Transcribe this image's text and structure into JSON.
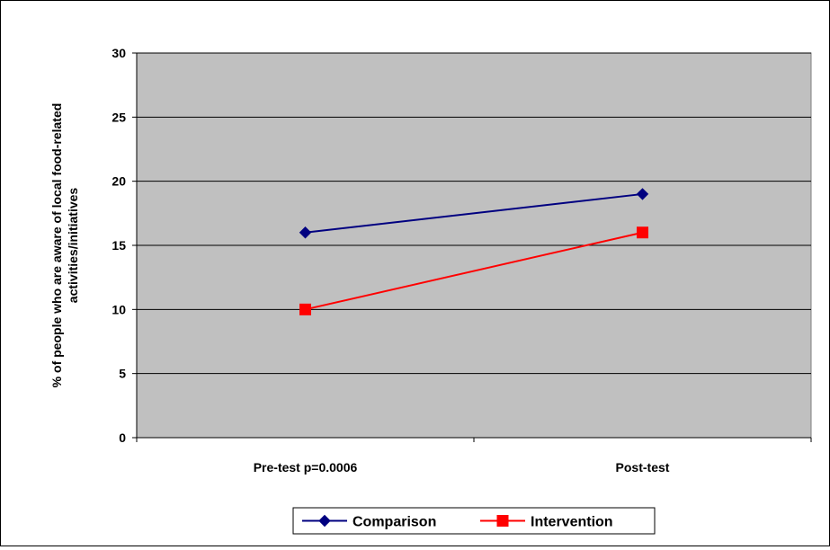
{
  "chart_data": {
    "type": "line",
    "categories": [
      "Pre-test p=0.0006",
      "Post-test"
    ],
    "series": [
      {
        "name": "Comparison",
        "values": [
          16,
          19
        ],
        "color": "#000080",
        "marker": "diamond"
      },
      {
        "name": "Intervention",
        "values": [
          10,
          16
        ],
        "color": "#ff0000",
        "marker": "square"
      }
    ],
    "title": "",
    "xlabel": "",
    "ylabel": "% of people who are aware of local food-related activities/initiatives",
    "ylabel_lines": [
      "% of people who are aware of local food-related",
      "activities/initiatives"
    ],
    "ylim": [
      0,
      30
    ],
    "yticks": [
      0,
      5,
      10,
      15,
      20,
      25,
      30
    ],
    "grid": true,
    "legend": "bottom-center",
    "plot_background": "#c0c0c0",
    "gridline_color": "#000000"
  }
}
